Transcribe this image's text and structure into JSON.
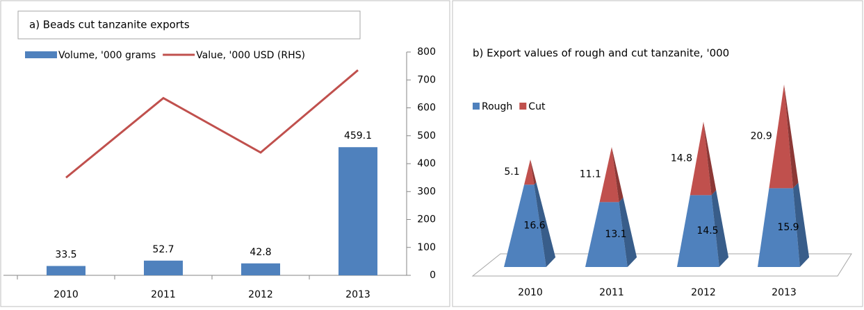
{
  "chart_data": [
    {
      "type": "bar-line",
      "title": "a) Beads cut tanzanite exports",
      "categories": [
        "2010",
        "2011",
        "2012",
        "2013"
      ],
      "series": [
        {
          "name": "Volume, '000 grams",
          "color": "#4f81bd",
          "type": "bar",
          "values": [
            33.5,
            52.7,
            42.8,
            459.1
          ]
        },
        {
          "name": "Value, '000 USD (RHS)",
          "color": "#c0504d",
          "type": "line",
          "values": [
            350,
            635,
            440,
            735
          ]
        }
      ],
      "ylim": [
        0,
        800
      ],
      "yticks": [
        0,
        100,
        200,
        300,
        400,
        500,
        600,
        700,
        800
      ]
    },
    {
      "type": "pyramid-stacked",
      "title": "b) Export values of rough and cut tanzanite, '000",
      "categories": [
        "2010",
        "2011",
        "2012",
        "2013"
      ],
      "series": [
        {
          "name": "Rough",
          "color": "#4f81bd",
          "values": [
            16.6,
            13.1,
            14.5,
            15.9
          ]
        },
        {
          "name": "Cut",
          "color": "#c0504d",
          "values": [
            5.1,
            11.1,
            14.8,
            20.9
          ]
        }
      ]
    }
  ]
}
